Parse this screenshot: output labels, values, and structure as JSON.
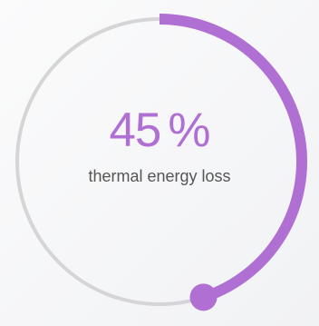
{
  "gauge": {
    "value": 45,
    "unit": "%",
    "label": "thermal energy loss",
    "track_color": "#d5d5d8",
    "fill_color": "#b06fd2",
    "handle_color": "#b06fd2"
  }
}
